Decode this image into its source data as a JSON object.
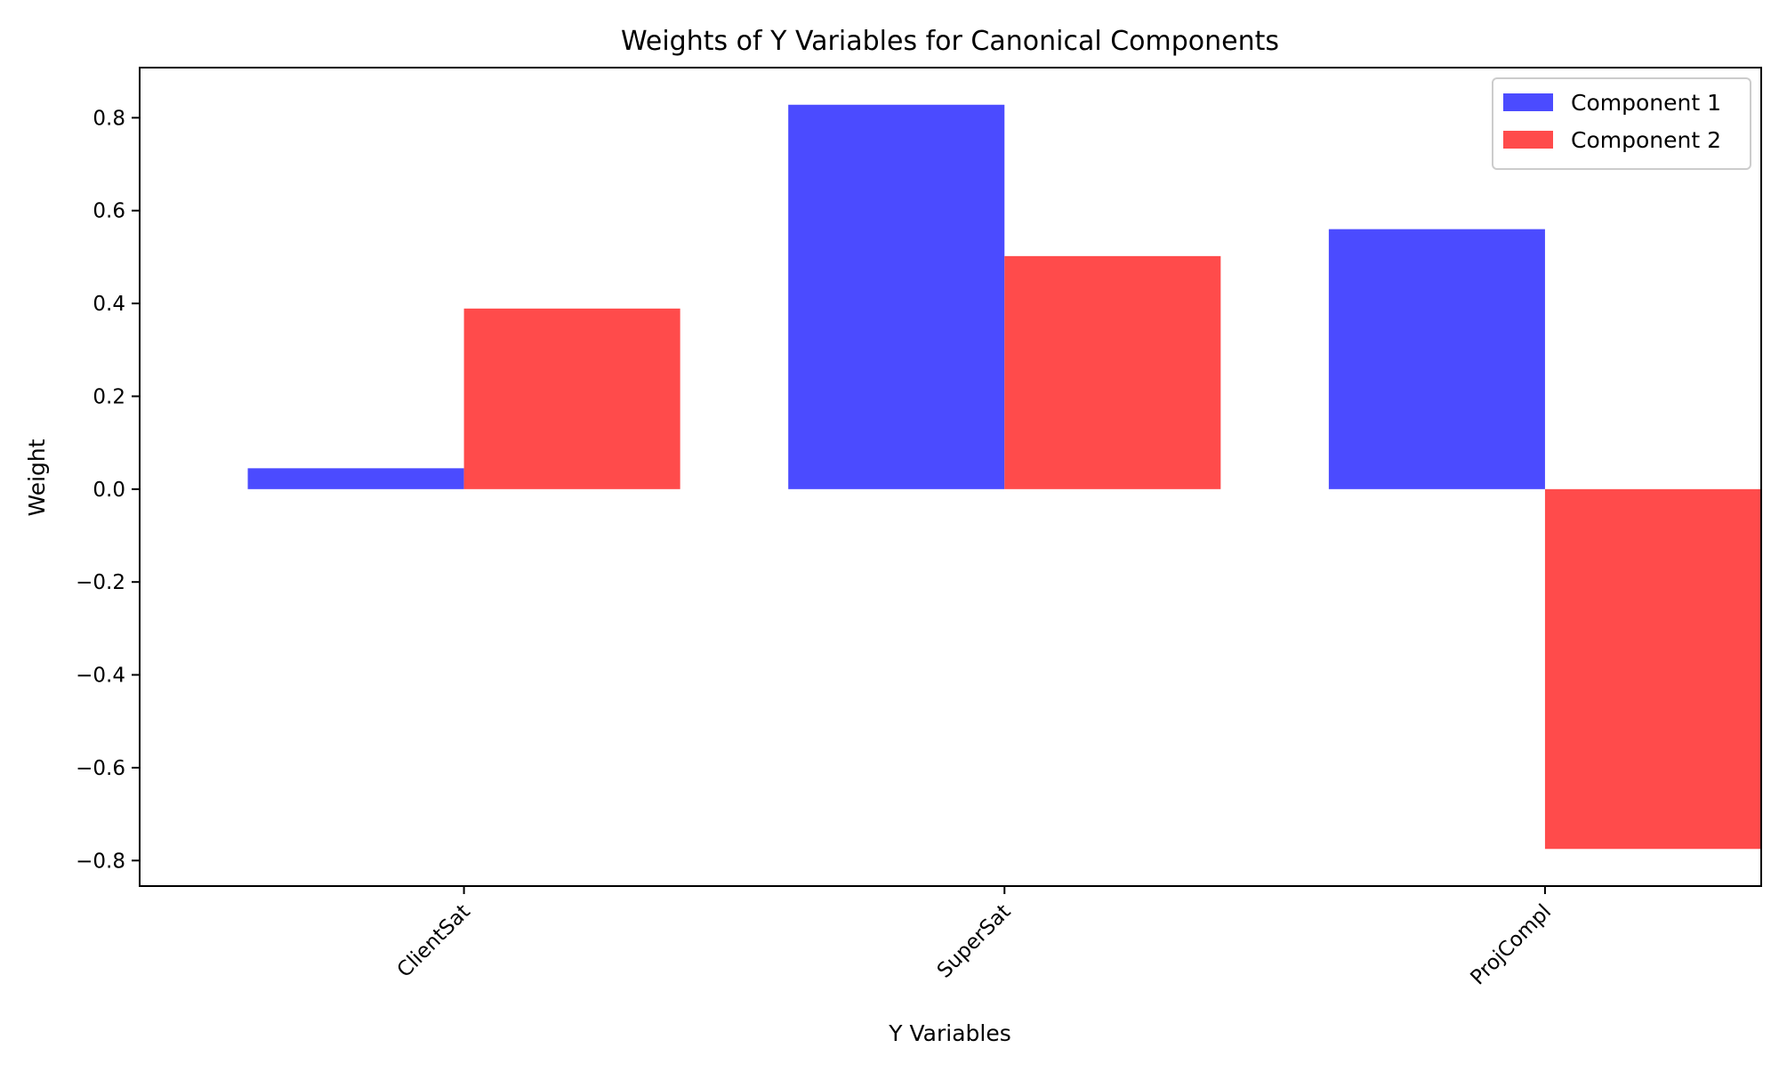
{
  "chart_data": {
    "type": "bar",
    "title": "Weights of Y Variables for Canonical Components",
    "xlabel": "Y Variables",
    "ylabel": "Weight",
    "categories": [
      "ClientSat",
      "SuperSat",
      "ProjCompl"
    ],
    "series": [
      {
        "name": "Component 1",
        "color": "#4b4bff",
        "values": [
          0.045,
          0.828,
          0.56
        ]
      },
      {
        "name": "Component 2",
        "color": "#ff4b4b",
        "values": [
          0.389,
          0.502,
          -0.775
        ]
      }
    ],
    "ylim": [
      -0.855,
      0.908
    ],
    "yticks": [
      -0.8,
      -0.6,
      -0.4,
      -0.2,
      0.0,
      0.2,
      0.4,
      0.6,
      0.8
    ],
    "ytick_labels": [
      "−0.8",
      "−0.6",
      "−0.4",
      "−0.2",
      "0.0",
      "0.2",
      "0.4",
      "0.6",
      "0.8"
    ],
    "grid": false,
    "legend_position": "top-right",
    "xtick_rotation": 45
  }
}
